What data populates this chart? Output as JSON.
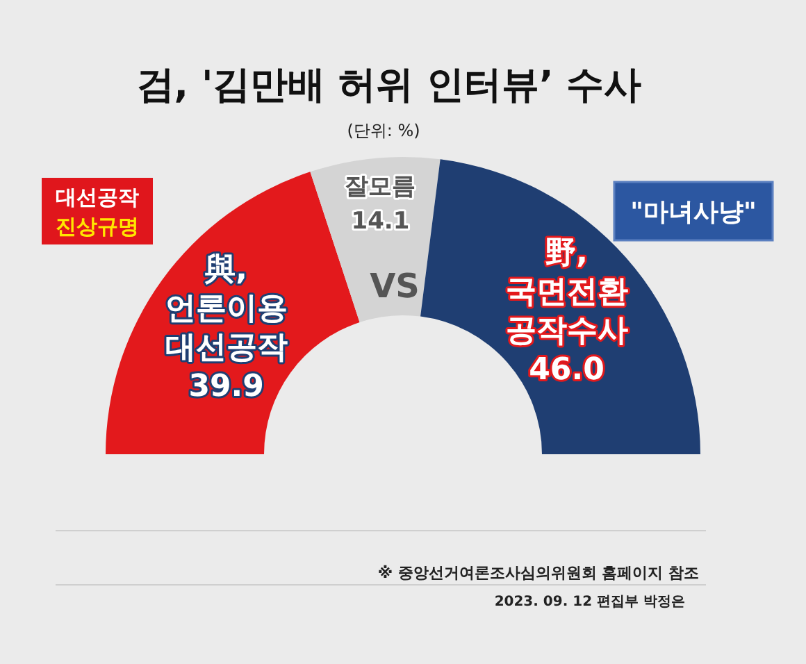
{
  "chart_data": {
    "type": "donut",
    "title": "검, '김만배 허위 인터뷰’ 수사",
    "subtitle": "(단위: %)",
    "categories": [
      "與, 언론이용 대선공작",
      "잘모름",
      "野, 국면전환 공작수사"
    ],
    "values": [
      39.9,
      14.1,
      46.0
    ],
    "value_labels": [
      "39.9",
      "14.1",
      "46.0"
    ],
    "colors": [
      "#e3191c",
      "#d4d4d4",
      "#1f3e72"
    ],
    "annotations": [
      "VS",
      "대선공작 진상규명",
      "\"마녀사냥\"",
      "※ 중앙선거여론조사심의위원회 홈페이지 참조",
      "2023. 09. 12 편집부 박정은"
    ]
  }
}
